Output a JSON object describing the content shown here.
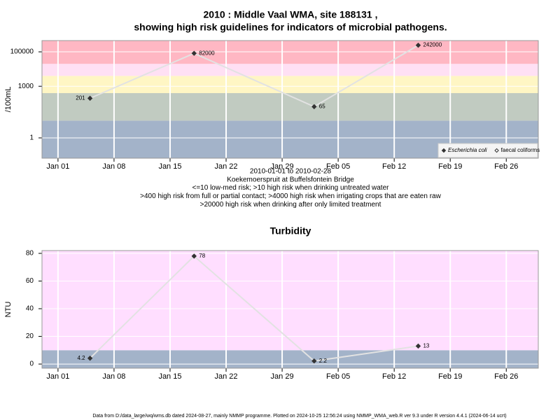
{
  "chart_data": [
    {
      "type": "line",
      "title_lines": [
        "2010 : Middle Vaal WMA, site 188131 ,",
        "showing high risk guidelines for indicators of microbial pathogens."
      ],
      "note_lines": [
        "2010-01-01 to 2010-02-28",
        "Koekemoerspruit at Buffelsfontein Bridge",
        "<=10 low-med risk; >10 high risk when drinking untreated water",
        ">400 high risk from full or partial contact; >4000 high risk when irrigating crops that are eaten raw",
        ">20000 high risk when drinking after only limited treatment"
      ],
      "y_label": "/100mL",
      "log_y": true,
      "x": [
        "Jan 05",
        "Jan 18",
        "Feb 02",
        "Feb 15"
      ],
      "series": [
        {
          "name": "Escherichia coli",
          "color": "#333333",
          "values": [
            201,
            82000,
            65,
            242000
          ]
        },
        {
          "name": "faecal coliforms",
          "color": "#333333",
          "values": [
            null,
            null,
            null,
            null
          ]
        }
      ],
      "xlim": [
        "Dec 30",
        "Mar 02"
      ],
      "xticks": [
        "Jan 01",
        "Jan 08",
        "Jan 15",
        "Jan 22",
        "Jan 29",
        "Feb 05",
        "Feb 12",
        "Feb 19",
        "Feb 26"
      ],
      "ylim": [
        0.066,
        450000
      ],
      "yticks": [
        1,
        1000,
        100000
      ],
      "bands": [
        {
          "lower": 0.066,
          "upper": 10,
          "color": "#a3b3c9"
        },
        {
          "lower": 10,
          "upper": 400,
          "color": "#c1cbc1"
        },
        {
          "lower": 400,
          "upper": 4000,
          "color": "#fff6c4"
        },
        {
          "lower": 4000,
          "upper": 20000,
          "color": "#ffe0f4"
        },
        {
          "lower": 20000,
          "upper": 450000,
          "color": "#ffb7c3"
        }
      ],
      "grid": true,
      "legend": "bottom-right"
    },
    {
      "type": "line",
      "title_lines": [
        "Turbidity"
      ],
      "y_label": "NTU",
      "log_y": false,
      "x": [
        "Jan 05",
        "Jan 18",
        "Feb 02",
        "Feb 15"
      ],
      "values": [
        4.2,
        78,
        2.2,
        13
      ],
      "color": "#333333",
      "xlim": [
        "Dec 30",
        "Mar 02"
      ],
      "xticks": [
        "Jan 01",
        "Jan 08",
        "Jan 15",
        "Jan 22",
        "Jan 29",
        "Feb 05",
        "Feb 12",
        "Feb 19",
        "Feb 26"
      ],
      "ylim": [
        -3,
        82
      ],
      "yticks": [
        0,
        20,
        40,
        60,
        80
      ],
      "bands": [
        {
          "lower": -3,
          "upper": 10,
          "color": "#a3b3c9"
        },
        {
          "lower": 10,
          "upper": 82,
          "color": "#ffdeff"
        }
      ],
      "grid": true
    }
  ],
  "footer": "Data from D:/data_large/wq/wms.db dated 2024-08-27, mainly NMMP programme. Plotted on 2024-10-25 12:56:24 using NMMP_WMA_web.R ver 9.3 under R version 4.4.1 (2024-06-14 ucrt)"
}
